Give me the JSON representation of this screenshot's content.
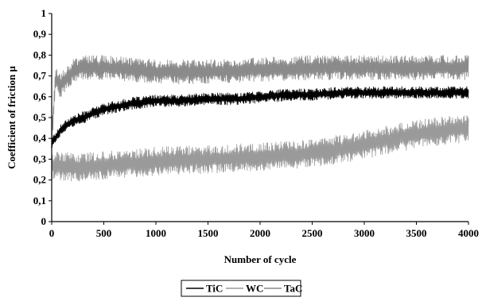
{
  "chart_data": {
    "type": "line",
    "xlabel": "Number of cycle",
    "ylabel": "Coefficient of friction μ",
    "xlim": [
      0,
      4000
    ],
    "ylim": [
      0,
      1
    ],
    "x_ticks": [
      "0",
      "500",
      "1000",
      "1500",
      "2000",
      "2500",
      "3000",
      "3500",
      "4000"
    ],
    "y_ticks": [
      "0",
      "0,1",
      "0,2",
      "0,3",
      "0,4",
      "0,5",
      "0,6",
      "0,7",
      "0,8",
      "0,9",
      "1"
    ],
    "grid": false,
    "legend_position": "bottom-center",
    "series": [
      {
        "name": "TiC",
        "color": "#000000",
        "x": [
          0,
          50,
          100,
          200,
          300,
          400,
          500,
          600,
          700,
          800,
          1000,
          1200,
          1500,
          1800,
          2000,
          2300,
          2500,
          2800,
          3000,
          3300,
          3500,
          3800,
          4000
        ],
        "values": [
          0.38,
          0.41,
          0.45,
          0.48,
          0.5,
          0.52,
          0.54,
          0.55,
          0.56,
          0.57,
          0.58,
          0.58,
          0.59,
          0.59,
          0.6,
          0.61,
          0.61,
          0.62,
          0.62,
          0.62,
          0.62,
          0.62,
          0.62
        ],
        "spread": 0.03
      },
      {
        "name": "WC",
        "color": "#9a9a9a",
        "x": [
          0,
          250,
          500,
          800,
          1000,
          1500,
          2000,
          2300,
          2500,
          2800,
          3000,
          3300,
          3500,
          3800,
          4000
        ],
        "values": [
          0.27,
          0.26,
          0.27,
          0.28,
          0.29,
          0.3,
          0.31,
          0.32,
          0.33,
          0.35,
          0.37,
          0.4,
          0.42,
          0.44,
          0.45
        ],
        "spread": 0.07
      },
      {
        "name": "TaC",
        "color": "#8a8a8a",
        "x": [
          0,
          40,
          80,
          120,
          200,
          300,
          500,
          1000,
          1500,
          2000,
          2500,
          3000,
          3500,
          4000
        ],
        "values": [
          0.4,
          0.7,
          0.65,
          0.68,
          0.72,
          0.74,
          0.74,
          0.72,
          0.72,
          0.73,
          0.74,
          0.74,
          0.74,
          0.74
        ],
        "spread": 0.06
      }
    ]
  }
}
